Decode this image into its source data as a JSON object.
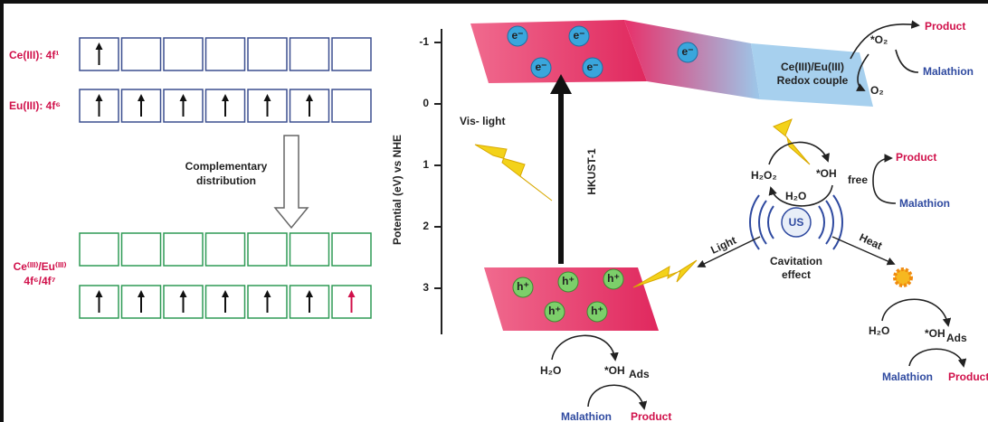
{
  "energy_levels": {
    "rows": [
      {
        "label": "Ce(III): 4f¹"
      },
      {
        "label": "Eu(III): 4f⁶"
      }
    ],
    "transition": [
      "Complementary",
      "distribution"
    ],
    "combined_label": [
      "Ce⁽ᴵᴵᴵ⁾/Eu⁽ᴵᴵᴵ⁾",
      "4f⁶/4f⁷"
    ]
  },
  "band_diagram": {
    "axis_label": "Potential (eV) vs NHE",
    "ticks": [
      -1,
      0,
      1,
      2,
      3
    ],
    "electron": "e⁻",
    "hole": "h⁺",
    "light": "Vis- light",
    "material": "HKUST-1",
    "redox": [
      "Ce(III)/Eu(III)",
      "Redox couple"
    ]
  },
  "reactions": {
    "superoxide": "*O₂",
    "oxygen": "O₂",
    "product": "Product",
    "malathion": "Malathion",
    "h2o2": "H₂O₂",
    "oh": "*OH",
    "free": "free",
    "water": "H₂O",
    "ultrasound": "US",
    "light": "Light",
    "heat": "Heat",
    "cavitation": [
      "Cavitation",
      "effect"
    ],
    "ads": "Ads"
  }
}
